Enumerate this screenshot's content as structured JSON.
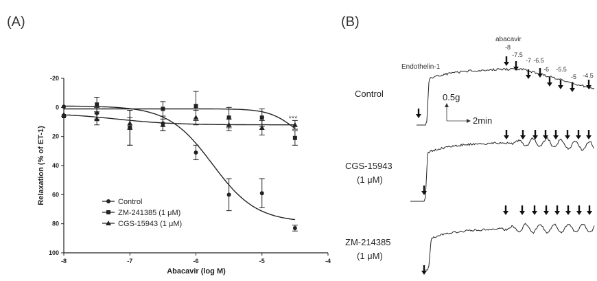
{
  "panels": {
    "a": {
      "label": "(A)"
    },
    "b": {
      "label": "(B)"
    }
  },
  "chart_data": [
    {
      "type": "scatter",
      "xlabel": "Abacavir (log M)",
      "ylabel": "Relaxation (% of ET-1)",
      "xlim": [
        -8,
        -4
      ],
      "ylim": [
        100,
        -20
      ],
      "y_inverted": true,
      "xticks": [
        -8,
        -7,
        -6,
        -5,
        -4
      ],
      "yticks": [
        -20,
        0,
        20,
        40,
        60,
        80,
        100
      ],
      "grid": false,
      "legend_position": "bottom-center",
      "annotation": "***",
      "series": [
        {
          "name": "Control",
          "marker": "circle",
          "x": [
            -8,
            -7.5,
            -7,
            -6.5,
            -6,
            -5.5,
            -5,
            -4.5
          ],
          "y": [
            -0.5,
            4,
            14,
            11,
            31,
            60,
            59,
            83
          ],
          "err": [
            0,
            4,
            12,
            5,
            5,
            11,
            10,
            2
          ],
          "fit": {
            "top": -1,
            "bottom": 79,
            "logEC50": -5.75,
            "hill": 1.3
          }
        },
        {
          "name": "ZM-241385 (1 μM)",
          "marker": "square",
          "x": [
            -8,
            -7.5,
            -7,
            -6.5,
            -6,
            -5.5,
            -5,
            -4.5
          ],
          "y": [
            6,
            -2,
            14,
            1,
            -1,
            7,
            7,
            21
          ],
          "err": [
            0,
            5,
            12,
            5,
            10,
            7,
            6,
            5
          ],
          "fit": {
            "top": 1,
            "bottom": 28,
            "logEC50": -4.5,
            "hill": 2.2
          }
        },
        {
          "name": "CGS-15943 (1 μM)",
          "marker": "triangle",
          "x": [
            -8,
            -7.5,
            -7,
            -6.5,
            -6,
            -5.5,
            -5,
            -4.5
          ],
          "y": [
            5,
            8,
            11,
            12,
            7,
            12,
            14,
            12
          ],
          "err": [
            0,
            4,
            4,
            4,
            5,
            4,
            5,
            3
          ],
          "fit": {
            "top": 4,
            "bottom": 12,
            "logEC50": -7.2,
            "hill": 1
          }
        }
      ]
    },
    {
      "type": "line",
      "description_rows": [
        "Control",
        "CGS-15943 (1 μM)",
        "ZM-214385 (1 μM)"
      ],
      "row_labels": [
        {
          "line1": "Control",
          "line2": ""
        },
        {
          "line1": "CGS-15943",
          "line2": "(1 μM)"
        },
        {
          "line1": "ZM-214385",
          "line2": "(1 μM)"
        }
      ],
      "endothelin_label": "Endothelin-1",
      "abacavir_label": "abacavir",
      "concentration_labels": [
        "-8",
        "-7.5",
        "-7",
        "-6.5",
        "-6",
        "-5.5",
        "-5",
        "-4.5"
      ],
      "scale_bar": {
        "force": "0.5g",
        "time": "2min"
      }
    }
  ]
}
